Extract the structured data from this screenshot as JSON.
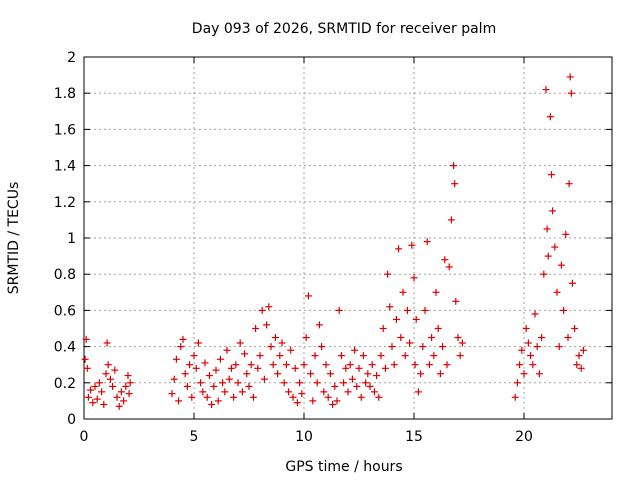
{
  "chart_data": {
    "type": "scatter",
    "title": "Day 093 of 2026, SRMTID for receiver palm",
    "xlabel": "GPS time / hours",
    "ylabel": "SRMTID / TECUs",
    "xlim": [
      0,
      24
    ],
    "ylim": [
      0,
      2
    ],
    "x_ticks": [
      0,
      5,
      10,
      15,
      20
    ],
    "x_tick_labels": [
      "0",
      "5",
      "10",
      "15",
      "20"
    ],
    "y_ticks": [
      0,
      0.2,
      0.4,
      0.6,
      0.8,
      1,
      1.2,
      1.4,
      1.6,
      1.8,
      2
    ],
    "y_tick_labels": [
      "0",
      "0.2",
      "0.4",
      "0.6",
      "0.8",
      "1",
      "1.2",
      "1.4",
      "1.6",
      "1.8",
      "2"
    ],
    "grid": true,
    "marker": "+",
    "marker_color": "#dd0000",
    "series": [
      {
        "name": "SRMTID",
        "points": [
          [
            0.05,
            0.33
          ],
          [
            0.1,
            0.44
          ],
          [
            0.15,
            0.28
          ],
          [
            0.2,
            0.12
          ],
          [
            0.3,
            0.16
          ],
          [
            0.4,
            0.09
          ],
          [
            0.5,
            0.18
          ],
          [
            0.6,
            0.11
          ],
          [
            0.7,
            0.2
          ],
          [
            0.8,
            0.15
          ],
          [
            0.9,
            0.08
          ],
          [
            1.0,
            0.25
          ],
          [
            1.05,
            0.42
          ],
          [
            1.1,
            0.3
          ],
          [
            1.2,
            0.22
          ],
          [
            1.3,
            0.18
          ],
          [
            1.4,
            0.27
          ],
          [
            1.5,
            0.12
          ],
          [
            1.6,
            0.07
          ],
          [
            1.7,
            0.15
          ],
          [
            1.8,
            0.1
          ],
          [
            1.9,
            0.18
          ],
          [
            2.0,
            0.24
          ],
          [
            2.05,
            0.14
          ],
          [
            2.1,
            0.2
          ],
          [
            4.0,
            0.14
          ],
          [
            4.1,
            0.22
          ],
          [
            4.2,
            0.33
          ],
          [
            4.3,
            0.1
          ],
          [
            4.4,
            0.4
          ],
          [
            4.5,
            0.44
          ],
          [
            4.6,
            0.25
          ],
          [
            4.7,
            0.18
          ],
          [
            4.8,
            0.3
          ],
          [
            4.9,
            0.12
          ],
          [
            5.0,
            0.35
          ],
          [
            5.1,
            0.28
          ],
          [
            5.2,
            0.42
          ],
          [
            5.3,
            0.2
          ],
          [
            5.4,
            0.15
          ],
          [
            5.5,
            0.31
          ],
          [
            5.6,
            0.12
          ],
          [
            5.7,
            0.24
          ],
          [
            5.8,
            0.08
          ],
          [
            5.9,
            0.18
          ],
          [
            6.0,
            0.27
          ],
          [
            6.1,
            0.1
          ],
          [
            6.2,
            0.33
          ],
          [
            6.3,
            0.2
          ],
          [
            6.4,
            0.15
          ],
          [
            6.5,
            0.38
          ],
          [
            6.6,
            0.22
          ],
          [
            6.7,
            0.28
          ],
          [
            6.8,
            0.12
          ],
          [
            6.9,
            0.3
          ],
          [
            7.0,
            0.2
          ],
          [
            7.1,
            0.42
          ],
          [
            7.2,
            0.15
          ],
          [
            7.3,
            0.36
          ],
          [
            7.4,
            0.25
          ],
          [
            7.5,
            0.18
          ],
          [
            7.6,
            0.3
          ],
          [
            7.7,
            0.12
          ],
          [
            7.8,
            0.5
          ],
          [
            7.9,
            0.28
          ],
          [
            8.0,
            0.35
          ],
          [
            8.1,
            0.6
          ],
          [
            8.2,
            0.22
          ],
          [
            8.3,
            0.52
          ],
          [
            8.4,
            0.62
          ],
          [
            8.5,
            0.4
          ],
          [
            8.6,
            0.3
          ],
          [
            8.7,
            0.45
          ],
          [
            8.8,
            0.25
          ],
          [
            8.9,
            0.35
          ],
          [
            9.0,
            0.42
          ],
          [
            9.1,
            0.2
          ],
          [
            9.2,
            0.3
          ],
          [
            9.3,
            0.15
          ],
          [
            9.4,
            0.38
          ],
          [
            9.5,
            0.12
          ],
          [
            9.6,
            0.28
          ],
          [
            9.7,
            0.09
          ],
          [
            9.8,
            0.2
          ],
          [
            9.9,
            0.14
          ],
          [
            10.0,
            0.3
          ],
          [
            10.1,
            0.45
          ],
          [
            10.2,
            0.68
          ],
          [
            10.3,
            0.25
          ],
          [
            10.4,
            0.1
          ],
          [
            10.5,
            0.35
          ],
          [
            10.6,
            0.2
          ],
          [
            10.7,
            0.52
          ],
          [
            10.8,
            0.4
          ],
          [
            10.9,
            0.15
          ],
          [
            11.0,
            0.3
          ],
          [
            11.1,
            0.12
          ],
          [
            11.2,
            0.25
          ],
          [
            11.3,
            0.08
          ],
          [
            11.4,
            0.18
          ],
          [
            11.5,
            0.1
          ],
          [
            11.6,
            0.6
          ],
          [
            11.7,
            0.35
          ],
          [
            11.8,
            0.2
          ],
          [
            11.9,
            0.28
          ],
          [
            12.0,
            0.15
          ],
          [
            12.1,
            0.3
          ],
          [
            12.2,
            0.22
          ],
          [
            12.3,
            0.38
          ],
          [
            12.4,
            0.18
          ],
          [
            12.5,
            0.28
          ],
          [
            12.6,
            0.12
          ],
          [
            12.7,
            0.35
          ],
          [
            12.8,
            0.2
          ],
          [
            12.9,
            0.25
          ],
          [
            13.0,
            0.18
          ],
          [
            13.1,
            0.3
          ],
          [
            13.2,
            0.15
          ],
          [
            13.3,
            0.24
          ],
          [
            13.4,
            0.12
          ],
          [
            13.5,
            0.35
          ],
          [
            13.6,
            0.5
          ],
          [
            13.7,
            0.28
          ],
          [
            13.8,
            0.8
          ],
          [
            13.9,
            0.62
          ],
          [
            14.0,
            0.4
          ],
          [
            14.1,
            0.3
          ],
          [
            14.2,
            0.55
          ],
          [
            14.3,
            0.94
          ],
          [
            14.4,
            0.45
          ],
          [
            14.5,
            0.7
          ],
          [
            14.6,
            0.35
          ],
          [
            14.7,
            0.6
          ],
          [
            14.8,
            0.42
          ],
          [
            14.9,
            0.96
          ],
          [
            15.0,
            0.78
          ],
          [
            15.05,
            0.3
          ],
          [
            15.1,
            0.55
          ],
          [
            15.2,
            0.15
          ],
          [
            15.3,
            0.25
          ],
          [
            15.4,
            0.4
          ],
          [
            15.5,
            0.6
          ],
          [
            15.6,
            0.98
          ],
          [
            15.7,
            0.3
          ],
          [
            15.8,
            0.45
          ],
          [
            15.9,
            0.35
          ],
          [
            16.0,
            0.7
          ],
          [
            16.1,
            0.5
          ],
          [
            16.2,
            0.25
          ],
          [
            16.3,
            0.4
          ],
          [
            16.4,
            0.88
          ],
          [
            16.5,
            0.3
          ],
          [
            16.6,
            0.84
          ],
          [
            16.7,
            1.1
          ],
          [
            16.8,
            1.4
          ],
          [
            16.85,
            1.3
          ],
          [
            16.9,
            0.65
          ],
          [
            17.0,
            0.45
          ],
          [
            17.1,
            0.35
          ],
          [
            17.2,
            0.42
          ],
          [
            19.6,
            0.12
          ],
          [
            19.7,
            0.2
          ],
          [
            19.8,
            0.3
          ],
          [
            19.9,
            0.38
          ],
          [
            20.0,
            0.25
          ],
          [
            20.1,
            0.5
          ],
          [
            20.2,
            0.42
          ],
          [
            20.3,
            0.35
          ],
          [
            20.4,
            0.3
          ],
          [
            20.5,
            0.58
          ],
          [
            20.6,
            0.4
          ],
          [
            20.7,
            0.25
          ],
          [
            20.8,
            0.45
          ],
          [
            20.9,
            0.8
          ],
          [
            21.0,
            1.82
          ],
          [
            21.05,
            1.05
          ],
          [
            21.1,
            0.9
          ],
          [
            21.2,
            1.67
          ],
          [
            21.25,
            1.35
          ],
          [
            21.3,
            1.15
          ],
          [
            21.4,
            0.95
          ],
          [
            21.5,
            0.7
          ],
          [
            21.6,
            0.4
          ],
          [
            21.7,
            0.85
          ],
          [
            21.8,
            0.6
          ],
          [
            21.9,
            1.02
          ],
          [
            22.0,
            0.45
          ],
          [
            22.05,
            1.3
          ],
          [
            22.1,
            1.89
          ],
          [
            22.15,
            1.8
          ],
          [
            22.2,
            0.75
          ],
          [
            22.3,
            0.5
          ],
          [
            22.4,
            0.3
          ],
          [
            22.5,
            0.35
          ],
          [
            22.6,
            0.28
          ],
          [
            22.7,
            0.38
          ]
        ]
      }
    ]
  }
}
